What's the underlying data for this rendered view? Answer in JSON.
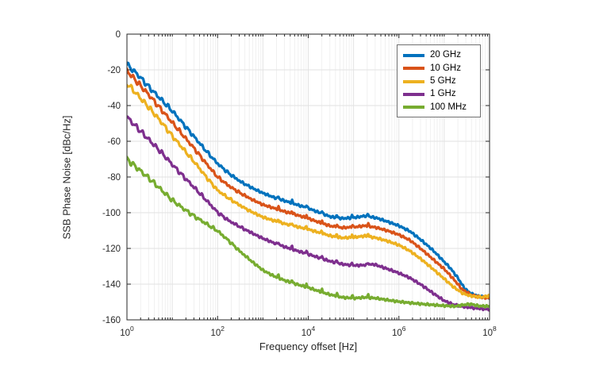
{
  "figure": {
    "background": "#ffffff",
    "axes_color": "#262626",
    "grid_major_color": "#e2e2e2",
    "grid_minor_color": "#ededed"
  },
  "legend": {
    "position": "upper right",
    "border_color": "#707070"
  },
  "chart_data": {
    "type": "line",
    "title": "",
    "xlabel": "Frequency offset [Hz]",
    "ylabel": "SSB Phase Noise [dBc/Hz]",
    "x_scale": "log10",
    "xlim": [
      1,
      100000000
    ],
    "ylim": [
      -160,
      0
    ],
    "x_tick_base": "10",
    "x_tick_exponents": [
      0,
      2,
      4,
      6,
      8
    ],
    "y_ticks": [
      0,
      -20,
      -40,
      -60,
      -80,
      -100,
      -120,
      -140,
      -160
    ],
    "grid": "major horizontal + log-spaced minor vertical, light gray",
    "legend_position": "upper right",
    "notes": "SSB phase noise vs offset for carrier frequencies; spur scallops below ~500 Hz, small spurs 2 kHz-200 kHz, flattening hump near 100-300 kHz, noise floor ~-148 to -154 dBc/Hz at 100 MHz offset",
    "series": [
      {
        "name": "20 GHz",
        "color": "#0072BD",
        "points_log10Hz_dBcHz": [
          [
            0,
            -17
          ],
          [
            0.25,
            -23
          ],
          [
            0.5,
            -30
          ],
          [
            0.75,
            -36.5
          ],
          [
            1,
            -43
          ],
          [
            1.25,
            -50.5
          ],
          [
            1.5,
            -58
          ],
          [
            1.75,
            -65.5
          ],
          [
            2,
            -72.5
          ],
          [
            2.25,
            -78
          ],
          [
            2.5,
            -82.5
          ],
          [
            2.75,
            -86
          ],
          [
            3,
            -89
          ],
          [
            3.25,
            -91.5
          ],
          [
            3.5,
            -93.5
          ],
          [
            3.75,
            -95.5
          ],
          [
            4,
            -97.5
          ],
          [
            4.25,
            -100
          ],
          [
            4.5,
            -102.3
          ],
          [
            4.75,
            -103.2
          ],
          [
            5,
            -102.8
          ],
          [
            5.25,
            -101.8
          ],
          [
            5.5,
            -102.9
          ],
          [
            5.75,
            -105
          ],
          [
            6,
            -107.3
          ],
          [
            6.25,
            -110.5
          ],
          [
            6.5,
            -115.5
          ],
          [
            6.75,
            -121
          ],
          [
            7,
            -127.5
          ],
          [
            7.15,
            -131.5
          ],
          [
            7.3,
            -136.5
          ],
          [
            7.45,
            -142.5
          ],
          [
            7.6,
            -145.5
          ],
          [
            7.8,
            -147
          ],
          [
            8,
            -147.6
          ]
        ]
      },
      {
        "name": "10 GHz",
        "color": "#D95319",
        "points_log10Hz_dBcHz": [
          [
            0,
            -20.5
          ],
          [
            0.25,
            -27.5
          ],
          [
            0.5,
            -34.5
          ],
          [
            0.75,
            -42
          ],
          [
            1,
            -49.5
          ],
          [
            1.25,
            -57
          ],
          [
            1.5,
            -64.5
          ],
          [
            1.75,
            -72.5
          ],
          [
            2,
            -80
          ],
          [
            2.25,
            -85
          ],
          [
            2.5,
            -89
          ],
          [
            2.75,
            -92.5
          ],
          [
            3,
            -95.5
          ],
          [
            3.25,
            -97.5
          ],
          [
            3.5,
            -99.5
          ],
          [
            3.75,
            -101.3
          ],
          [
            4,
            -103.2
          ],
          [
            4.25,
            -105.5
          ],
          [
            4.5,
            -107.5
          ],
          [
            4.75,
            -108.4
          ],
          [
            5,
            -108.1
          ],
          [
            5.25,
            -107.3
          ],
          [
            5.5,
            -108.3
          ],
          [
            5.75,
            -110.1
          ],
          [
            6,
            -112.3
          ],
          [
            6.25,
            -115.5
          ],
          [
            6.5,
            -120.5
          ],
          [
            6.75,
            -126
          ],
          [
            7,
            -131.5
          ],
          [
            7.2,
            -137
          ],
          [
            7.4,
            -143
          ],
          [
            7.6,
            -146.2
          ],
          [
            7.8,
            -147.3
          ],
          [
            8,
            -147.8
          ]
        ]
      },
      {
        "name": "5 GHz",
        "color": "#EDB120",
        "points_log10Hz_dBcHz": [
          [
            0,
            -27.5
          ],
          [
            0.25,
            -34.5
          ],
          [
            0.5,
            -41.5
          ],
          [
            0.75,
            -49
          ],
          [
            1,
            -57
          ],
          [
            1.25,
            -64.5
          ],
          [
            1.5,
            -72
          ],
          [
            1.75,
            -80
          ],
          [
            2,
            -87.5
          ],
          [
            2.25,
            -92
          ],
          [
            2.5,
            -96
          ],
          [
            2.75,
            -99.5
          ],
          [
            3,
            -102.5
          ],
          [
            3.25,
            -104.5
          ],
          [
            3.5,
            -106.3
          ],
          [
            3.75,
            -107.8
          ],
          [
            4,
            -109.3
          ],
          [
            4.25,
            -111.2
          ],
          [
            4.5,
            -113
          ],
          [
            4.75,
            -114.1
          ],
          [
            5,
            -113.8
          ],
          [
            5.25,
            -113
          ],
          [
            5.5,
            -114.1
          ],
          [
            5.75,
            -115.9
          ],
          [
            6,
            -118.1
          ],
          [
            6.25,
            -121.5
          ],
          [
            6.5,
            -126.2
          ],
          [
            6.75,
            -131.5
          ],
          [
            7,
            -137
          ],
          [
            7.2,
            -141.5
          ],
          [
            7.4,
            -145
          ],
          [
            7.55,
            -146.4
          ],
          [
            7.7,
            -147
          ],
          [
            7.85,
            -147.3
          ],
          [
            8,
            -146.4
          ]
        ]
      },
      {
        "name": "1 GHz",
        "color": "#7E2F8E",
        "points_log10Hz_dBcHz": [
          [
            0,
            -46.5
          ],
          [
            0.25,
            -53
          ],
          [
            0.5,
            -59.5
          ],
          [
            0.75,
            -66
          ],
          [
            1,
            -73
          ],
          [
            1.25,
            -79.8
          ],
          [
            1.5,
            -86.3
          ],
          [
            1.75,
            -93
          ],
          [
            2,
            -99.8
          ],
          [
            2.25,
            -104.5
          ],
          [
            2.5,
            -108
          ],
          [
            2.75,
            -111.3
          ],
          [
            3,
            -114.4
          ],
          [
            3.25,
            -117
          ],
          [
            3.5,
            -119.3
          ],
          [
            3.75,
            -121.3
          ],
          [
            4,
            -123.2
          ],
          [
            4.25,
            -125.3
          ],
          [
            4.5,
            -127.3
          ],
          [
            4.75,
            -128.8
          ],
          [
            5,
            -129.6
          ],
          [
            5.25,
            -129.3
          ],
          [
            5.45,
            -128.9
          ],
          [
            5.65,
            -130.6
          ],
          [
            5.85,
            -132.4
          ],
          [
            6,
            -133.8
          ],
          [
            6.25,
            -136.6
          ],
          [
            6.5,
            -140.5
          ],
          [
            6.75,
            -145
          ],
          [
            7,
            -149.3
          ],
          [
            7.2,
            -151.4
          ],
          [
            7.4,
            -152.5
          ],
          [
            7.6,
            -153.2
          ],
          [
            7.8,
            -153.7
          ],
          [
            8,
            -154.2
          ]
        ]
      },
      {
        "name": "100 MHz",
        "color": "#77AC30",
        "points_log10Hz_dBcHz": [
          [
            0,
            -70
          ],
          [
            0.25,
            -75.5
          ],
          [
            0.5,
            -81
          ],
          [
            0.75,
            -87
          ],
          [
            1,
            -93
          ],
          [
            1.25,
            -97.8
          ],
          [
            1.5,
            -102.2
          ],
          [
            1.75,
            -106.2
          ],
          [
            2,
            -110.2
          ],
          [
            2.25,
            -115.8
          ],
          [
            2.5,
            -121.8
          ],
          [
            2.75,
            -127.2
          ],
          [
            3,
            -132.2
          ],
          [
            3.25,
            -135.6
          ],
          [
            3.5,
            -138.1
          ],
          [
            3.75,
            -140.1
          ],
          [
            4,
            -141.9
          ],
          [
            4.25,
            -144.1
          ],
          [
            4.5,
            -146
          ],
          [
            4.75,
            -147.4
          ],
          [
            5,
            -147.9
          ],
          [
            5.25,
            -147.4
          ],
          [
            5.5,
            -147.9
          ],
          [
            5.75,
            -148.9
          ],
          [
            6,
            -149.8
          ],
          [
            6.25,
            -150.5
          ],
          [
            6.5,
            -151.1
          ],
          [
            6.75,
            -151.6
          ],
          [
            7,
            -152.1
          ],
          [
            7.25,
            -152.4
          ],
          [
            7.45,
            -151.5
          ],
          [
            7.6,
            -151.2
          ],
          [
            7.75,
            -152.2
          ],
          [
            8,
            -152.4
          ]
        ]
      }
    ]
  }
}
